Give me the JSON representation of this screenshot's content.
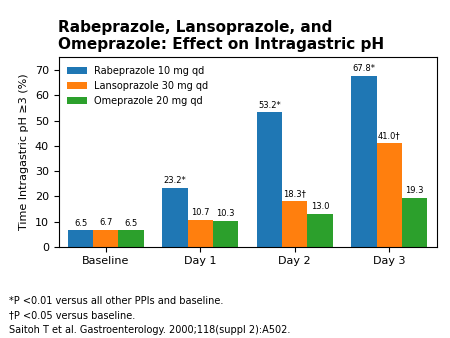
{
  "chart_data": {
    "type": "bar",
    "title": "Rabeprazole, Lansoprazole, and\nOmeprazole: Effect on Intragastric pH",
    "y_label": "Time Intragastric pH ≥3 (%)",
    "categories": [
      "Baseline",
      "Day 1",
      "Day 2",
      "Day 3"
    ],
    "series": [
      {
        "name": "Rabeprazole 10 mg qd",
        "values": [
          6.5,
          23.2,
          53.2,
          67.8
        ],
        "value_labels": [
          "6.5",
          "23.2*",
          "53.2*",
          "67.8*"
        ]
      },
      {
        "name": "Lansoprazole 30 mg qd",
        "values": [
          6.7,
          10.7,
          18.3,
          41.0
        ],
        "value_labels": [
          "6.7",
          "10.7",
          "18.3†",
          "41.0†"
        ]
      },
      {
        "name": "Omeprazole 20 mg qd",
        "values": [
          6.5,
          10.3,
          13.0,
          19.3
        ],
        "value_labels": [
          "6.5",
          "10.3",
          "13.0",
          "19.3"
        ]
      }
    ],
    "ylim": [
      0,
      75
    ],
    "yticks": [
      0,
      10,
      20,
      30,
      40,
      50,
      60,
      70
    ],
    "data_labels": true,
    "legend": "upper left",
    "annotations": [
      "*P <0.01 versus all other PPIs and baseline.",
      "†P <0.05 versus baseline.",
      "Saitoh T et al. Gastroenterology. 2000;118(suppl 2):A502."
    ]
  }
}
